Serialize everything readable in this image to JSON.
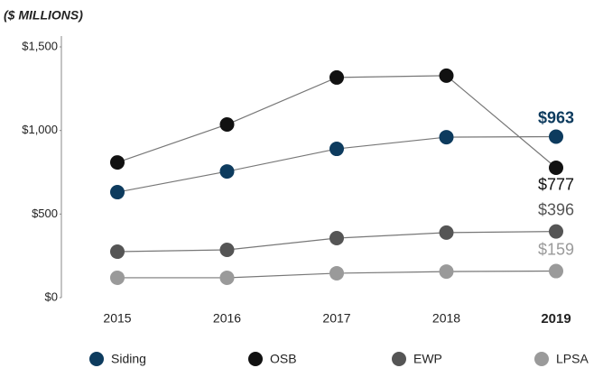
{
  "chart_data": {
    "type": "line",
    "subtitle": "($ MILLIONS)",
    "categories": [
      "2015",
      "2016",
      "2017",
      "2018",
      "2019"
    ],
    "series": [
      {
        "name": "Siding",
        "color": "#0d3b5e",
        "values": [
          631,
          755,
          890,
          960,
          963
        ],
        "value_labels": [
          null,
          null,
          null,
          null,
          "$963"
        ]
      },
      {
        "name": "OSB",
        "color": "#111111",
        "values": [
          809,
          1036,
          1317,
          1328,
          777
        ],
        "value_labels": [
          null,
          null,
          null,
          null,
          "$777"
        ]
      },
      {
        "name": "EWP",
        "color": "#555555",
        "values": [
          275,
          286,
          356,
          389,
          396
        ],
        "value_labels": [
          null,
          null,
          null,
          null,
          "$396"
        ]
      },
      {
        "name": "LPSA",
        "color": "#9a9a9a",
        "values": [
          119,
          119,
          146,
          156,
          159
        ],
        "value_labels": [
          null,
          null,
          null,
          null,
          "$159"
        ]
      }
    ],
    "ylim": [
      0,
      1500
    ],
    "yticks": [
      {
        "value": 0,
        "label": "$0"
      },
      {
        "value": 500,
        "label": "$500"
      },
      {
        "value": 1000,
        "label": "$1,000"
      },
      {
        "value": 1500,
        "label": "$1,500"
      }
    ],
    "grid": false,
    "legend": "bottom"
  }
}
